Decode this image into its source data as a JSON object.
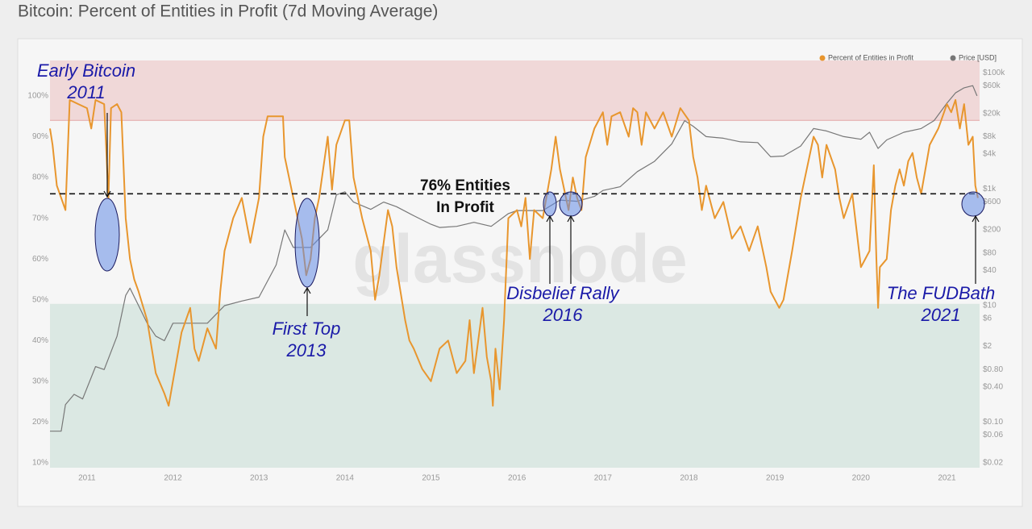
{
  "chart_data": {
    "type": "line",
    "title": "Bitcoin: Percent of Entities in Profit (7d Moving Average)",
    "watermark": "glassnode",
    "legend": "top-right",
    "y2log": true,
    "xlim": [
      2010.57,
      2021.38
    ],
    "xticks": [
      2011,
      2012,
      2013,
      2014,
      2015,
      2016,
      2017,
      2018,
      2019,
      2020,
      2021
    ],
    "ylim": [
      8.8,
      108.7
    ],
    "yticks": [
      {
        "value": 10,
        "label": "10%"
      },
      {
        "value": 20,
        "label": "20%"
      },
      {
        "value": 30,
        "label": "30%"
      },
      {
        "value": 40,
        "label": "40%"
      },
      {
        "value": 50,
        "label": "50%"
      },
      {
        "value": 60,
        "label": "60%"
      },
      {
        "value": 70,
        "label": "70%"
      },
      {
        "value": 80,
        "label": "80%"
      },
      {
        "value": 90,
        "label": "90%"
      },
      {
        "value": 100,
        "label": "100%"
      }
    ],
    "y2lim": [
      0.0165,
      162000
    ],
    "y2ticks": [
      {
        "value": 0.02,
        "label": "$0.02"
      },
      {
        "value": 0.06,
        "label": "$0.06"
      },
      {
        "value": 0.1,
        "label": "$0.10"
      },
      {
        "value": 0.4,
        "label": "$0.40"
      },
      {
        "value": 0.8,
        "label": "$0.80"
      },
      {
        "value": 2,
        "label": "$2"
      },
      {
        "value": 6,
        "label": "$6"
      },
      {
        "value": 10,
        "label": "$10"
      },
      {
        "value": 40,
        "label": "$40"
      },
      {
        "value": 80,
        "label": "$80"
      },
      {
        "value": 200,
        "label": "$200"
      },
      {
        "value": 600,
        "label": "$600"
      },
      {
        "value": 1000,
        "label": "$1k"
      },
      {
        "value": 4000,
        "label": "$4k"
      },
      {
        "value": 8000,
        "label": "$8k"
      },
      {
        "value": 20000,
        "label": "$20k"
      },
      {
        "value": 60000,
        "label": "$60k"
      },
      {
        "value": 100000,
        "label": "$100k"
      }
    ],
    "bands": [
      {
        "above": 94,
        "color": "#f0d8d8"
      },
      {
        "below": 49,
        "color": "#dbe8e3"
      }
    ],
    "reference_line": {
      "value": 76,
      "label_lines": [
        "76% Entities",
        "In Profit"
      ]
    },
    "annotations": [
      {
        "lines": [
          "Early Bitcoin",
          "2011"
        ]
      },
      {
        "lines": [
          "First Top",
          "2013"
        ]
      },
      {
        "lines": [
          "Disbelief Rally",
          "2016"
        ]
      },
      {
        "lines": [
          "The FUDBath",
          "2021"
        ]
      }
    ],
    "series": [
      {
        "name": "Percent of Entities in Profit",
        "color": "#e8962e",
        "x": [
          2010.57,
          2010.6,
          2010.65,
          2010.7,
          2010.75,
          2010.8,
          2010.9,
          2011.0,
          2011.05,
          2011.1,
          2011.2,
          2011.25,
          2011.28,
          2011.35,
          2011.4,
          2011.45,
          2011.5,
          2011.55,
          2011.6,
          2011.7,
          2011.8,
          2011.9,
          2011.95,
          2012.0,
          2012.1,
          2012.2,
          2012.25,
          2012.3,
          2012.4,
          2012.5,
          2012.55,
          2012.6,
          2012.7,
          2012.8,
          2012.9,
          2013.0,
          2013.05,
          2013.1,
          2013.2,
          2013.28,
          2013.3,
          2013.4,
          2013.5,
          2013.55,
          2013.6,
          2013.65,
          2013.7,
          2013.8,
          2013.85,
          2013.9,
          2014.0,
          2014.05,
          2014.1,
          2014.15,
          2014.2,
          2014.3,
          2014.35,
          2014.4,
          2014.5,
          2014.55,
          2014.6,
          2014.7,
          2014.75,
          2014.8,
          2014.9,
          2015.0,
          2015.05,
          2015.1,
          2015.2,
          2015.3,
          2015.4,
          2015.45,
          2015.5,
          2015.6,
          2015.65,
          2015.7,
          2015.72,
          2015.75,
          2015.8,
          2015.85,
          2015.9,
          2016.0,
          2016.05,
          2016.1,
          2016.15,
          2016.2,
          2016.3,
          2016.4,
          2016.45,
          2016.5,
          2016.6,
          2016.65,
          2016.7,
          2016.75,
          2016.8,
          2016.9,
          2017.0,
          2017.05,
          2017.1,
          2017.2,
          2017.3,
          2017.35,
          2017.4,
          2017.45,
          2017.5,
          2017.6,
          2017.7,
          2017.8,
          2017.9,
          2018.0,
          2018.05,
          2018.1,
          2018.15,
          2018.2,
          2018.3,
          2018.4,
          2018.5,
          2018.6,
          2018.7,
          2018.8,
          2018.9,
          2018.95,
          2019.0,
          2019.05,
          2019.1,
          2019.2,
          2019.3,
          2019.4,
          2019.45,
          2019.5,
          2019.55,
          2019.6,
          2019.7,
          2019.75,
          2019.8,
          2019.9,
          2020.0,
          2020.1,
          2020.15,
          2020.18,
          2020.2,
          2020.22,
          2020.3,
          2020.35,
          2020.4,
          2020.45,
          2020.5,
          2020.55,
          2020.6,
          2020.65,
          2020.7,
          2020.8,
          2020.9,
          2021.0,
          2021.05,
          2021.1,
          2021.15,
          2021.2,
          2021.25,
          2021.3,
          2021.33,
          2021.36
        ],
        "values": [
          92,
          88,
          78,
          75,
          72,
          99,
          98,
          97,
          92,
          99,
          98,
          75,
          97,
          98,
          96,
          70,
          60,
          55,
          52,
          45,
          32,
          27,
          24,
          30,
          42,
          48,
          38,
          35,
          43,
          38,
          52,
          62,
          70,
          75,
          64,
          75,
          90,
          95,
          95,
          95,
          85,
          75,
          65,
          56,
          60,
          70,
          75,
          90,
          77,
          88,
          94,
          94,
          80,
          75,
          70,
          62,
          50,
          56,
          72,
          68,
          58,
          45,
          40,
          38,
          33,
          30,
          34,
          38,
          40,
          32,
          35,
          45,
          32,
          48,
          36,
          30,
          24,
          38,
          28,
          45,
          70,
          72,
          68,
          75,
          60,
          72,
          70,
          82,
          90,
          82,
          72,
          80,
          75,
          72,
          85,
          92,
          96,
          88,
          95,
          96,
          90,
          97,
          96,
          88,
          96,
          92,
          96,
          90,
          97,
          94,
          85,
          80,
          72,
          78,
          70,
          74,
          65,
          68,
          62,
          68,
          58,
          52,
          50,
          48,
          50,
          62,
          75,
          85,
          90,
          88,
          80,
          88,
          82,
          75,
          70,
          76,
          58,
          62,
          83,
          60,
          48,
          58,
          60,
          72,
          78,
          82,
          78,
          84,
          86,
          80,
          76,
          88,
          92,
          98,
          96,
          99,
          92,
          98,
          88,
          90,
          78,
          75
        ]
      },
      {
        "name": "Price [USD]",
        "color": "#777777",
        "axis": "y2",
        "x": [
          2010.57,
          2010.7,
          2010.75,
          2010.85,
          2010.95,
          2011.1,
          2011.2,
          2011.35,
          2011.45,
          2011.5,
          2011.6,
          2011.7,
          2011.8,
          2011.9,
          2012.0,
          2012.2,
          2012.4,
          2012.6,
          2012.8,
          2013.0,
          2013.2,
          2013.3,
          2013.4,
          2013.5,
          2013.6,
          2013.8,
          2013.9,
          2014.0,
          2014.1,
          2014.3,
          2014.45,
          2014.6,
          2014.8,
          2015.0,
          2015.1,
          2015.3,
          2015.5,
          2015.7,
          2015.9,
          2016.0,
          2016.3,
          2016.5,
          2016.7,
          2016.9,
          2017.0,
          2017.2,
          2017.4,
          2017.6,
          2017.8,
          2017.95,
          2018.05,
          2018.2,
          2018.4,
          2018.6,
          2018.8,
          2018.95,
          2019.1,
          2019.3,
          2019.45,
          2019.6,
          2019.8,
          2020.0,
          2020.1,
          2020.2,
          2020.3,
          2020.5,
          2020.7,
          2020.85,
          2021.0,
          2021.1,
          2021.2,
          2021.3,
          2021.35
        ],
        "values": [
          0.07,
          0.07,
          0.2,
          0.3,
          0.25,
          0.9,
          0.8,
          3,
          15,
          20,
          10,
          5,
          3,
          2.5,
          5,
          5,
          5,
          10,
          12,
          14,
          50,
          200,
          100,
          100,
          100,
          200,
          800,
          900,
          600,
          450,
          600,
          500,
          350,
          250,
          220,
          230,
          270,
          230,
          380,
          430,
          430,
          650,
          620,
          750,
          950,
          1100,
          2000,
          3000,
          6000,
          15000,
          12000,
          8000,
          7500,
          6500,
          6300,
          3600,
          3700,
          5500,
          11000,
          10000,
          8000,
          7200,
          9500,
          5000,
          7000,
          9500,
          11000,
          15000,
          30000,
          45000,
          55000,
          60000,
          40000
        ]
      }
    ]
  }
}
